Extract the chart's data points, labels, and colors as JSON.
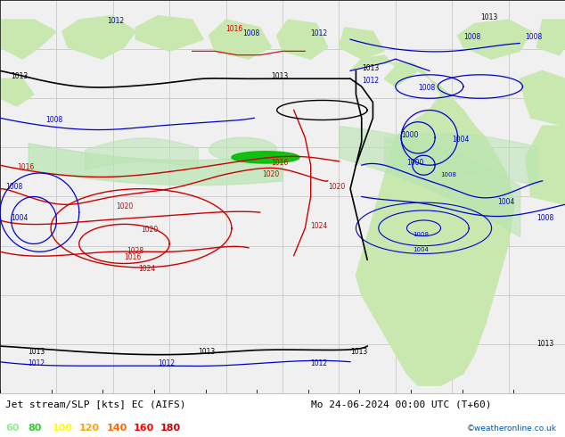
{
  "title": "Jet stream/SLP [kts] EC (AIFS)",
  "subtitle": "Mo 24-06-2024 00:00 UTC (T+60)",
  "copyright": "©weatheronline.co.uk",
  "legend_values": [
    "60",
    "80",
    "100",
    "120",
    "140",
    "160",
    "180"
  ],
  "legend_colors": [
    "#90ee90",
    "#32cd32",
    "#ffff00",
    "#ffa500",
    "#ff6600",
    "#ff0000",
    "#cc0000"
  ],
  "background_color": "#f0f0f0",
  "land_color": "#c8e8b0",
  "ocean_color": "#f0f0f0",
  "grid_color": "#c0c0c0",
  "contour_blue_color": "#0000cc",
  "contour_red_color": "#cc0000",
  "contour_black_color": "#000000",
  "fig_width": 6.34,
  "fig_height": 4.9,
  "dpi": 100,
  "bottom_bar_color": "#ffffff",
  "title_fontsize": 8.0,
  "label_fontsize": 6,
  "legend_fontsize": 8
}
